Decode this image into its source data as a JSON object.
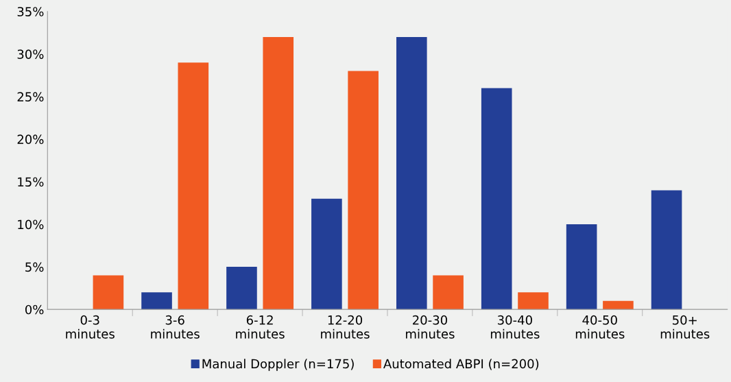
{
  "chart_data": {
    "type": "bar",
    "categories": [
      "0-3\nminutes",
      "3-6\nminutes",
      "6-12\nminutes",
      "12-20\nminutes",
      "20-30\nminutes",
      "30-40\nminutes",
      "40-50\nminutes",
      "50+\nminutes"
    ],
    "series": [
      {
        "name": "Manual Doppler (n=175)",
        "color": "#233f97",
        "values": [
          null,
          2,
          5,
          13,
          32,
          26,
          10,
          14
        ]
      },
      {
        "name": "Automated ABPI (n=200)",
        "color": "#f15a22",
        "values": [
          4,
          29,
          32,
          28,
          4,
          2,
          1,
          null
        ]
      }
    ],
    "ylim": [
      0,
      35
    ],
    "yticks": [
      {
        "value": 0,
        "label": "0%"
      },
      {
        "value": 5,
        "label": "5%"
      },
      {
        "value": 10,
        "label": "10%"
      },
      {
        "value": 15,
        "label": "15%"
      },
      {
        "value": 20,
        "label": "20%"
      },
      {
        "value": 25,
        "label": "25%"
      },
      {
        "value": 30,
        "label": "30%"
      },
      {
        "value": 35,
        "label": "35%"
      }
    ],
    "grid": false,
    "legend": "bottom"
  }
}
